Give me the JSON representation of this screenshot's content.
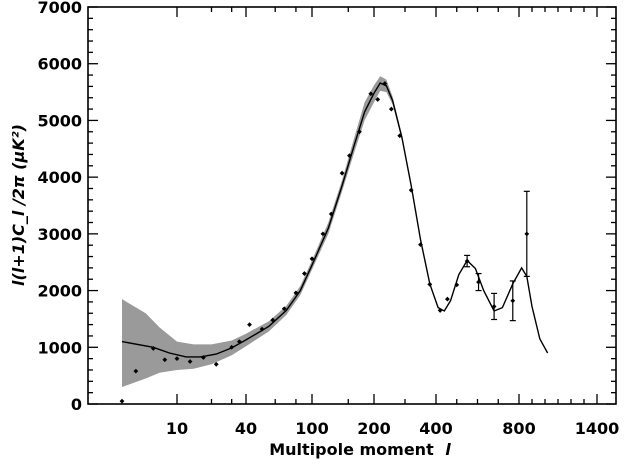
{
  "chart_data": {
    "type": "scatter",
    "xlabel": "Multipole moment",
    "xlabel_symbol": "l",
    "ylabel": "l(l+1)C_l /2π (μK²)",
    "xlim": [
      0,
      1520
    ],
    "ylim": [
      0,
      7000
    ],
    "x_ticks": [
      {
        "value": 10,
        "label": "10"
      },
      {
        "value": 40,
        "label": "40"
      },
      {
        "value": 100,
        "label": "100"
      },
      {
        "value": 200,
        "label": "200"
      },
      {
        "value": 400,
        "label": "400"
      },
      {
        "value": 800,
        "label": "800"
      },
      {
        "value": 1400,
        "label": "1400"
      }
    ],
    "y_ticks": [
      0,
      1000,
      2000,
      3000,
      4000,
      5000,
      6000,
      7000
    ],
    "grid": false,
    "legend": "none",
    "series": [
      {
        "kind": "points",
        "points": [
          {
            "x": 2,
            "y": 50
          },
          {
            "x": 3,
            "y": 580
          },
          {
            "x": 5,
            "y": 980
          },
          {
            "x": 7,
            "y": 780
          },
          {
            "x": 10,
            "y": 800
          },
          {
            "x": 13,
            "y": 750
          },
          {
            "x": 17,
            "y": 820
          },
          {
            "x": 22,
            "y": 700
          },
          {
            "x": 30,
            "y": 1000
          },
          {
            "x": 35,
            "y": 1100
          },
          {
            "x": 42,
            "y": 1400
          },
          {
            "x": 50,
            "y": 1320
          },
          {
            "x": 58,
            "y": 1480
          },
          {
            "x": 68,
            "y": 1680
          },
          {
            "x": 80,
            "y": 1960
          },
          {
            "x": 90,
            "y": 2300
          },
          {
            "x": 100,
            "y": 2560
          },
          {
            "x": 113,
            "y": 3000
          },
          {
            "x": 124,
            "y": 3350
          },
          {
            "x": 140,
            "y": 4070
          },
          {
            "x": 152,
            "y": 4380
          },
          {
            "x": 170,
            "y": 4800
          },
          {
            "x": 193,
            "y": 5470
          },
          {
            "x": 212,
            "y": 5370
          },
          {
            "x": 235,
            "y": 5650
          },
          {
            "x": 256,
            "y": 5200
          },
          {
            "x": 283,
            "y": 4730
          },
          {
            "x": 320,
            "y": 3770
          },
          {
            "x": 350,
            "y": 2810
          },
          {
            "x": 380,
            "y": 2110
          },
          {
            "x": 420,
            "y": 1650
          },
          {
            "x": 455,
            "y": 1850
          },
          {
            "x": 500,
            "y": 2100
          },
          {
            "x": 550,
            "y": 2520,
            "err": 100
          },
          {
            "x": 605,
            "y": 2150,
            "err": 150
          },
          {
            "x": 680,
            "y": 1720,
            "err": 230
          },
          {
            "x": 770,
            "y": 1820,
            "err": 350
          },
          {
            "x": 860,
            "y": 3000,
            "err": 750
          }
        ]
      },
      {
        "kind": "model",
        "points": [
          {
            "x": 2,
            "y": 1100
          },
          {
            "x": 5,
            "y": 1000
          },
          {
            "x": 8,
            "y": 900
          },
          {
            "x": 12,
            "y": 830
          },
          {
            "x": 16,
            "y": 830
          },
          {
            "x": 22,
            "y": 880
          },
          {
            "x": 30,
            "y": 990
          },
          {
            "x": 40,
            "y": 1130
          },
          {
            "x": 55,
            "y": 1370
          },
          {
            "x": 70,
            "y": 1650
          },
          {
            "x": 85,
            "y": 2000
          },
          {
            "x": 100,
            "y": 2450
          },
          {
            "x": 120,
            "y": 3100
          },
          {
            "x": 140,
            "y": 3850
          },
          {
            "x": 160,
            "y": 4550
          },
          {
            "x": 180,
            "y": 5150
          },
          {
            "x": 200,
            "y": 5480
          },
          {
            "x": 220,
            "y": 5660
          },
          {
            "x": 240,
            "y": 5610
          },
          {
            "x": 260,
            "y": 5350
          },
          {
            "x": 290,
            "y": 4700
          },
          {
            "x": 320,
            "y": 3850
          },
          {
            "x": 350,
            "y": 2900
          },
          {
            "x": 380,
            "y": 2120
          },
          {
            "x": 410,
            "y": 1700
          },
          {
            "x": 440,
            "y": 1640
          },
          {
            "x": 470,
            "y": 1820
          },
          {
            "x": 510,
            "y": 2280
          },
          {
            "x": 550,
            "y": 2530
          },
          {
            "x": 590,
            "y": 2390
          },
          {
            "x": 630,
            "y": 2000
          },
          {
            "x": 680,
            "y": 1640
          },
          {
            "x": 720,
            "y": 1700
          },
          {
            "x": 770,
            "y": 2120
          },
          {
            "x": 820,
            "y": 2400
          },
          {
            "x": 860,
            "y": 2250
          },
          {
            "x": 900,
            "y": 1720
          },
          {
            "x": 960,
            "y": 1150
          },
          {
            "x": 1020,
            "y": 900
          }
        ]
      },
      {
        "kind": "band",
        "upper": [
          {
            "x": 2,
            "y": 1850
          },
          {
            "x": 4,
            "y": 1600
          },
          {
            "x": 6,
            "y": 1350
          },
          {
            "x": 10,
            "y": 1100
          },
          {
            "x": 14,
            "y": 1050
          },
          {
            "x": 20,
            "y": 1050
          },
          {
            "x": 30,
            "y": 1120
          },
          {
            "x": 40,
            "y": 1240
          },
          {
            "x": 55,
            "y": 1460
          },
          {
            "x": 70,
            "y": 1730
          },
          {
            "x": 85,
            "y": 2080
          },
          {
            "x": 100,
            "y": 2530
          },
          {
            "x": 120,
            "y": 3200
          },
          {
            "x": 140,
            "y": 3950
          },
          {
            "x": 160,
            "y": 4680
          },
          {
            "x": 180,
            "y": 5320
          },
          {
            "x": 200,
            "y": 5620
          },
          {
            "x": 220,
            "y": 5780
          },
          {
            "x": 240,
            "y": 5720
          },
          {
            "x": 260,
            "y": 5420
          },
          {
            "x": 290,
            "y": 4750
          },
          {
            "x": 320,
            "y": 3870
          }
        ],
        "lower": [
          {
            "x": 2,
            "y": 300
          },
          {
            "x": 4,
            "y": 450
          },
          {
            "x": 6,
            "y": 550
          },
          {
            "x": 10,
            "y": 600
          },
          {
            "x": 14,
            "y": 620
          },
          {
            "x": 20,
            "y": 700
          },
          {
            "x": 30,
            "y": 860
          },
          {
            "x": 40,
            "y": 1020
          },
          {
            "x": 55,
            "y": 1280
          },
          {
            "x": 70,
            "y": 1570
          },
          {
            "x": 85,
            "y": 1920
          },
          {
            "x": 100,
            "y": 2370
          },
          {
            "x": 120,
            "y": 3000
          },
          {
            "x": 140,
            "y": 3750
          },
          {
            "x": 160,
            "y": 4420
          },
          {
            "x": 180,
            "y": 5000
          },
          {
            "x": 200,
            "y": 5320
          },
          {
            "x": 220,
            "y": 5520
          },
          {
            "x": 240,
            "y": 5500
          },
          {
            "x": 260,
            "y": 5280
          },
          {
            "x": 290,
            "y": 4650
          },
          {
            "x": 320,
            "y": 3830
          }
        ]
      }
    ]
  }
}
